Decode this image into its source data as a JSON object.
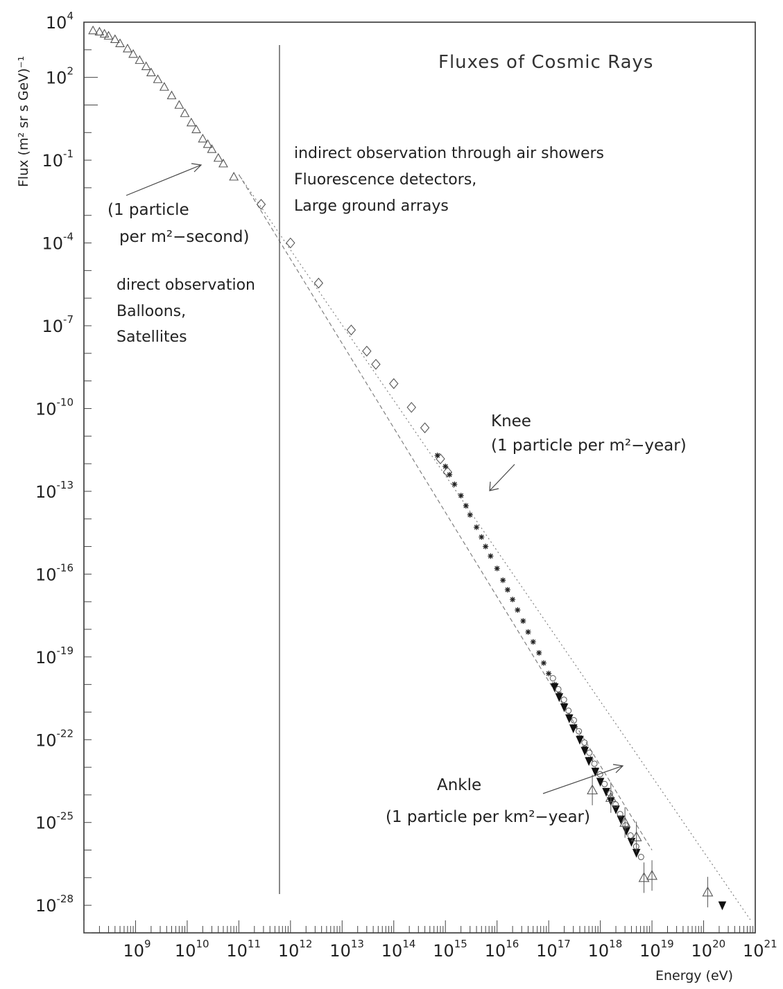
{
  "chart_data": {
    "type": "scatter",
    "title": "Fluxes of Cosmic Rays",
    "xlabel": "Energy (eV)",
    "ylabel": "Flux (m² sr s GeV)⁻¹",
    "x_log": true,
    "y_log": true,
    "xlim": [
      100000000.0,
      1e+21
    ],
    "ylim": [
      1e-29,
      10000.0
    ],
    "x_tick_labels": [
      {
        "base": "10",
        "exp": "9"
      },
      {
        "base": "10",
        "exp": "10"
      },
      {
        "base": "10",
        "exp": "11"
      },
      {
        "base": "10",
        "exp": "12"
      },
      {
        "base": "10",
        "exp": "13"
      },
      {
        "base": "10",
        "exp": "14"
      },
      {
        "base": "10",
        "exp": "15"
      },
      {
        "base": "10",
        "exp": "16"
      },
      {
        "base": "10",
        "exp": "17"
      },
      {
        "base": "10",
        "exp": "18"
      },
      {
        "base": "10",
        "exp": "19"
      },
      {
        "base": "10",
        "exp": "20"
      },
      {
        "base": "10",
        "exp": "21"
      }
    ],
    "y_tick_labels": [
      {
        "base": "10",
        "exp": "4"
      },
      {
        "base": "10",
        "exp": "2"
      },
      {
        "base": "10",
        "exp": "-1"
      },
      {
        "base": "10",
        "exp": "-4"
      },
      {
        "base": "10",
        "exp": "-7"
      },
      {
        "base": "10",
        "exp": "-10"
      },
      {
        "base": "10",
        "exp": "-13"
      },
      {
        "base": "10",
        "exp": "-16"
      },
      {
        "base": "10",
        "exp": "-19"
      },
      {
        "base": "10",
        "exp": "-22"
      },
      {
        "base": "10",
        "exp": "-25"
      },
      {
        "base": "10",
        "exp": "-28"
      }
    ],
    "divider_energy": 1000000000000.0,
    "reference_lines": [
      {
        "style": "dotted",
        "points": [
          [
            100000000000.0,
            0.03
          ],
          [
            8e+20,
            3e-29
          ]
        ]
      },
      {
        "style": "dashed",
        "points": [
          [
            100000000000.0,
            0.03
          ],
          [
            1e+19,
            1e-26
          ]
        ]
      }
    ],
    "series": [
      {
        "marker": "open-triangle",
        "points": [
          [
            150000000.0,
            5000
          ],
          [
            200000000.0,
            4500
          ],
          [
            250000000.0,
            3800
          ],
          [
            300000000.0,
            3200
          ],
          [
            400000000.0,
            2400
          ],
          [
            500000000.0,
            1700
          ],
          [
            700000000.0,
            1100
          ],
          [
            900000000.0,
            700
          ],
          [
            1200000000.0,
            420
          ],
          [
            1600000000.0,
            250
          ],
          [
            2000000000.0,
            150
          ],
          [
            2700000000.0,
            85
          ],
          [
            3600000000.0,
            45
          ],
          [
            5000000000.0,
            22
          ],
          [
            7000000000.0,
            10
          ],
          [
            9000000000.0,
            5
          ],
          [
            12000000000.0,
            2.3
          ],
          [
            15000000000.0,
            1.3
          ],
          [
            20000000000.0,
            0.6
          ],
          [
            25000000000.0,
            0.38
          ],
          [
            30000000000.0,
            0.25
          ],
          [
            40000000000.0,
            0.12
          ],
          [
            50000000000.0,
            0.075
          ],
          [
            80000000000.0,
            0.025
          ]
        ]
      },
      {
        "marker": "open-diamond",
        "points": [
          [
            270000000000.0,
            0.0025
          ],
          [
            1000000000000.0,
            0.0001
          ],
          [
            3500000000000.0,
            3.5e-06
          ],
          [
            15000000000000.0,
            7e-08
          ],
          [
            30000000000000.0,
            1.2e-08
          ],
          [
            45000000000000.0,
            4e-09
          ],
          [
            100000000000000.0,
            8e-10
          ],
          [
            220000000000000.0,
            1.1e-10
          ],
          [
            400000000000000.0,
            2e-11
          ],
          [
            800000000000000.0,
            1.5e-12
          ],
          [
            1100000000000000.0,
            5e-13
          ]
        ]
      },
      {
        "marker": "star",
        "points": [
          [
            700000000000000.0,
            2e-12
          ],
          [
            1000000000000000.0,
            8e-13
          ],
          [
            1200000000000000.0,
            4e-13
          ],
          [
            1500000000000000.0,
            1.8e-13
          ],
          [
            2000000000000000.0,
            7e-14
          ],
          [
            2500000000000000.0,
            3e-14
          ],
          [
            3000000000000000.0,
            1.4e-14
          ],
          [
            4000000000000000.0,
            5e-15
          ],
          [
            5000000000000000.0,
            2.2e-15
          ],
          [
            6000000000000000.0,
            1e-15
          ],
          [
            7500000000000000.0,
            4.5e-16
          ],
          [
            1e+16,
            1.6e-16
          ],
          [
            1.3e+16,
            6e-17
          ],
          [
            1.6e+16,
            2.7e-17
          ],
          [
            2e+16,
            1.2e-17
          ],
          [
            2.5e+16,
            5e-18
          ],
          [
            3.2e+16,
            2e-18
          ],
          [
            4e+16,
            8e-19
          ],
          [
            5e+16,
            3.5e-19
          ],
          [
            6.5e+16,
            1.4e-19
          ],
          [
            8e+16,
            6e-20
          ],
          [
            1e+17,
            2.5e-20
          ],
          [
            1.3e+17,
            1e-20
          ],
          [
            1.6e+17,
            4.5e-21
          ],
          [
            2e+17,
            1.8e-21
          ],
          [
            2.5e+17,
            7e-22
          ],
          [
            3.2e+17,
            3e-22
          ],
          [
            4e+17,
            1.2e-22
          ],
          [
            5e+17,
            5e-23
          ],
          [
            6.5e+17,
            2e-23
          ],
          [
            8e+17,
            8e-24
          ]
        ]
      },
      {
        "marker": "filled-triangle-down",
        "points": [
          [
            1.3e+17,
            8e-21
          ],
          [
            1.6e+17,
            3.5e-21
          ],
          [
            2e+17,
            1.5e-21
          ],
          [
            2.5e+17,
            6e-22
          ],
          [
            3e+17,
            2.6e-22
          ],
          [
            4e+17,
            1e-22
          ],
          [
            5e+17,
            4e-23
          ],
          [
            6e+17,
            1.7e-23
          ],
          [
            8e+17,
            7e-24
          ],
          [
            1e+18,
            3e-24
          ],
          [
            1.3e+18,
            1.3e-24
          ],
          [
            1.6e+18,
            6e-25
          ],
          [
            2e+18,
            3e-25
          ],
          [
            2.5e+18,
            1.3e-25
          ],
          [
            3.2e+18,
            5e-26
          ],
          [
            4e+18,
            2e-26
          ],
          [
            5e+18,
            8e-27
          ],
          [
            2.3e+20,
            1e-28
          ]
        ]
      },
      {
        "marker": "open-circle",
        "points": [
          [
            1.1e+17,
            1.5e-20
          ],
          [
            1.4e+17,
            6e-21
          ],
          [
            1.8e+17,
            2.5e-21
          ],
          [
            2.2e+17,
            1e-21
          ],
          [
            2.8e+17,
            4.5e-22
          ],
          [
            3.5e+17,
            1.8e-22
          ],
          [
            4.5e+17,
            7e-23
          ],
          [
            5.6e+17,
            3e-23
          ],
          [
            7e+17,
            1.2e-23
          ],
          [
            9e+17,
            5e-24
          ],
          [
            1.1e+18,
            2.2e-24
          ],
          [
            1.4e+18,
            1e-24
          ],
          [
            1.8e+18,
            4e-25
          ],
          [
            2.2e+18,
            1.8e-25
          ],
          [
            2.8e+18,
            7e-26
          ],
          [
            3.5e+18,
            3e-26
          ],
          [
            4.5e+18,
            1.2e-26
          ],
          [
            5.6e+18,
            5e-27
          ]
        ]
      },
      {
        "marker": "open-triangle-up",
        "points": [
          [
            7e+17,
            1.5e-24
          ],
          [
            1.6e+18,
            8e-25
          ],
          [
            3e+18,
            1e-25
          ],
          [
            5e+18,
            3e-26
          ],
          [
            7e+18,
            1e-27
          ],
          [
            1e+19,
            1.2e-27
          ],
          [
            1.2e+20,
            3e-28
          ]
        ]
      }
    ],
    "annotations": {
      "left_arrow_line1": "(1 particle",
      "left_arrow_line2": "per m²−second)",
      "direct_line1": "direct observation",
      "direct_line2": "Balloons,",
      "direct_line3": "Satellites",
      "indirect_line1": "indirect observation through air showers",
      "indirect_line2": "Fluorescence detectors,",
      "indirect_line3": "Large ground arrays",
      "knee_line1": "Knee",
      "knee_line2": "(1 particle per m²−year)",
      "ankle_line1": "Ankle",
      "ankle_line2": "(1 particle per km²−year)"
    }
  }
}
